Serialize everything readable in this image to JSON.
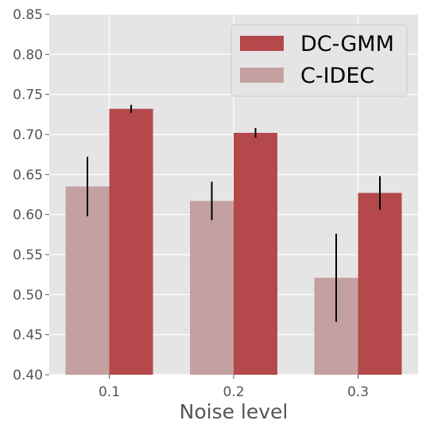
{
  "chart_data": {
    "type": "bar",
    "categories": [
      "0.1",
      "0.2",
      "0.3"
    ],
    "xlabel": "Noise level",
    "ylabel": "",
    "ylim": [
      0.4,
      0.85
    ],
    "yticks": [
      "0.40",
      "0.45",
      "0.50",
      "0.55",
      "0.60",
      "0.65",
      "0.70",
      "0.75",
      "0.80",
      "0.85"
    ],
    "grid": true,
    "legend_position": "top-right",
    "series": [
      {
        "name": "C-IDEC",
        "values": [
          0.635,
          0.617,
          0.521
        ],
        "errors": [
          0.037,
          0.024,
          0.055
        ],
        "color": "#c4a0a0"
      },
      {
        "name": "DC-GMM",
        "values": [
          0.732,
          0.702,
          0.627
        ],
        "errors": [
          0.005,
          0.006,
          0.021
        ],
        "color": "#b5484a"
      }
    ],
    "legend_order": [
      "DC-GMM",
      "C-IDEC"
    ]
  }
}
